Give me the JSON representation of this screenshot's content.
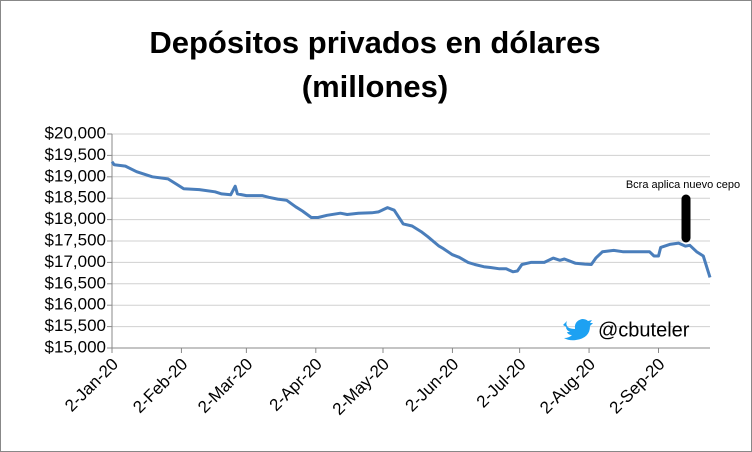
{
  "chart_data": {
    "type": "line",
    "title": [
      "Depósitos privados en dólares",
      "(millones)"
    ],
    "annotation": "Bcra aplica nuevo cepo",
    "watermark": "@cbuteler",
    "xlim": [
      "2020-01-02",
      "2020-09-25"
    ],
    "xticks": [
      {
        "value": "2020-01-02",
        "label": "2-Jan-20"
      },
      {
        "value": "2020-02-02",
        "label": "2-Feb-20"
      },
      {
        "value": "2020-03-02",
        "label": "2-Mar-20"
      },
      {
        "value": "2020-04-02",
        "label": "2-Apr-20"
      },
      {
        "value": "2020-05-02",
        "label": "2-May-20"
      },
      {
        "value": "2020-06-02",
        "label": "2-Jun-20"
      },
      {
        "value": "2020-07-02",
        "label": "2-Jul-20"
      },
      {
        "value": "2020-08-02",
        "label": "2-Aug-20"
      },
      {
        "value": "2020-09-02",
        "label": "2-Sep-20"
      }
    ],
    "ylim": [
      15000,
      20000
    ],
    "yticks": [
      {
        "value": 15000,
        "label": "$15,000"
      },
      {
        "value": 15500,
        "label": "$15,500"
      },
      {
        "value": 16000,
        "label": "$16,000"
      },
      {
        "value": 16500,
        "label": "$16,500"
      },
      {
        "value": 17000,
        "label": "$17,000"
      },
      {
        "value": 17500,
        "label": "$17,500"
      },
      {
        "value": 18000,
        "label": "$18,000"
      },
      {
        "value": 18500,
        "label": "$18,500"
      },
      {
        "value": 19000,
        "label": "$19,000"
      },
      {
        "value": 19500,
        "label": "$19,500"
      },
      {
        "value": 20000,
        "label": "$20,000"
      }
    ],
    "grid": true,
    "color": "#4a7ebb",
    "x": [
      "2020-01-02",
      "2020-01-03",
      "2020-01-08",
      "2020-01-13",
      "2020-01-20",
      "2020-01-27",
      "2020-01-31",
      "2020-02-03",
      "2020-02-10",
      "2020-02-17",
      "2020-02-20",
      "2020-02-24",
      "2020-02-26",
      "2020-02-27",
      "2020-03-02",
      "2020-03-09",
      "2020-03-12",
      "2020-03-16",
      "2020-03-20",
      "2020-03-24",
      "2020-03-27",
      "2020-03-31",
      "2020-04-03",
      "2020-04-07",
      "2020-04-13",
      "2020-04-16",
      "2020-04-21",
      "2020-04-27",
      "2020-04-30",
      "2020-05-04",
      "2020-05-07",
      "2020-05-11",
      "2020-05-15",
      "2020-05-19",
      "2020-05-22",
      "2020-05-27",
      "2020-05-29",
      "2020-06-02",
      "2020-06-05",
      "2020-06-09",
      "2020-06-12",
      "2020-06-16",
      "2020-06-19",
      "2020-06-23",
      "2020-06-26",
      "2020-06-29",
      "2020-07-01",
      "2020-07-03",
      "2020-07-07",
      "2020-07-13",
      "2020-07-17",
      "2020-07-20",
      "2020-07-22",
      "2020-07-27",
      "2020-07-31",
      "2020-08-03",
      "2020-08-05",
      "2020-08-08",
      "2020-08-13",
      "2020-08-17",
      "2020-08-29",
      "2020-08-31",
      "2020-09-02",
      "2020-09-03",
      "2020-09-07",
      "2020-09-11",
      "2020-09-14",
      "2020-09-16",
      "2020-09-19",
      "2020-09-22",
      "2020-09-25"
    ],
    "values": [
      19350,
      19280,
      19250,
      19120,
      19000,
      18950,
      18820,
      18720,
      18700,
      18650,
      18600,
      18580,
      18780,
      18600,
      18560,
      18560,
      18520,
      18480,
      18450,
      18300,
      18200,
      18050,
      18050,
      18100,
      18150,
      18120,
      18150,
      18160,
      18180,
      18280,
      18220,
      17900,
      17850,
      17720,
      17600,
      17380,
      17320,
      17180,
      17120,
      17000,
      16950,
      16900,
      16880,
      16850,
      16850,
      16780,
      16800,
      16950,
      17000,
      17000,
      17100,
      17050,
      17080,
      16980,
      16960,
      16950,
      17100,
      17250,
      17280,
      17250,
      17250,
      17150,
      17150,
      17350,
      17420,
      17450,
      17380,
      17400,
      17250,
      17150,
      16650
    ]
  }
}
